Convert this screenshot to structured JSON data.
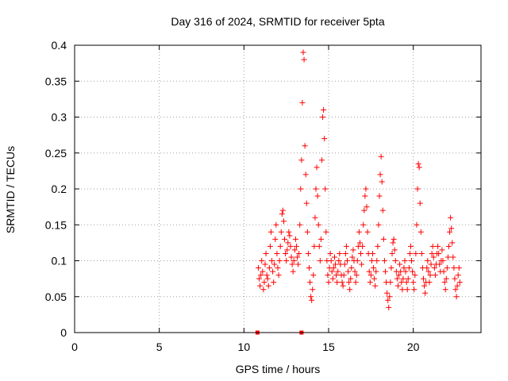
{
  "chart_data": {
    "type": "scatter",
    "title": "Day 316 of 2024, SRMTID for receiver 5pta",
    "xlabel": "GPS time / hours",
    "ylabel": "SRMTID / TECUs",
    "xlim": [
      0,
      24
    ],
    "ylim": [
      0,
      0.4
    ],
    "x_ticks": [
      "0",
      "5",
      "10",
      "15",
      "20"
    ],
    "y_ticks": [
      "0",
      "0.05",
      "0.1",
      "0.15",
      "0.2",
      "0.25",
      "0.3",
      "0.35",
      "0.4"
    ],
    "x_tick_values": [
      0,
      5,
      10,
      15,
      20
    ],
    "y_tick_values": [
      0,
      0.05,
      0.1,
      0.15,
      0.2,
      0.25,
      0.3,
      0.35,
      0.4
    ],
    "grid": true,
    "marker": "+",
    "color": "#ff0000",
    "zero_markers": [
      {
        "x": 10.8,
        "y": 0
      },
      {
        "x": 13.4,
        "y": 0
      }
    ],
    "series": [
      {
        "name": "SRMTID",
        "points": [
          [
            10.85,
            0.09
          ],
          [
            10.9,
            0.075
          ],
          [
            10.95,
            0.065
          ],
          [
            11.0,
            0.08
          ],
          [
            11.05,
            0.1
          ],
          [
            11.1,
            0.085
          ],
          [
            11.15,
            0.06
          ],
          [
            11.2,
            0.07
          ],
          [
            11.25,
            0.095
          ],
          [
            11.3,
            0.11
          ],
          [
            11.35,
            0.08
          ],
          [
            11.4,
            0.075
          ],
          [
            11.45,
            0.065
          ],
          [
            11.5,
            0.09
          ],
          [
            11.55,
            0.12
          ],
          [
            11.6,
            0.14
          ],
          [
            11.65,
            0.1
          ],
          [
            11.7,
            0.085
          ],
          [
            11.75,
            0.07
          ],
          [
            11.8,
            0.095
          ],
          [
            11.85,
            0.13
          ],
          [
            11.9,
            0.15
          ],
          [
            11.95,
            0.11
          ],
          [
            12.0,
            0.09
          ],
          [
            12.05,
            0.08
          ],
          [
            12.1,
            0.1
          ],
          [
            12.15,
            0.12
          ],
          [
            12.2,
            0.14
          ],
          [
            12.25,
            0.165
          ],
          [
            12.3,
            0.17
          ],
          [
            12.35,
            0.155
          ],
          [
            12.4,
            0.13
          ],
          [
            12.45,
            0.11
          ],
          [
            12.5,
            0.1
          ],
          [
            12.55,
            0.115
          ],
          [
            12.6,
            0.125
          ],
          [
            12.65,
            0.14
          ],
          [
            12.7,
            0.135
          ],
          [
            12.75,
            0.12
          ],
          [
            12.8,
            0.105
          ],
          [
            12.85,
            0.095
          ],
          [
            12.9,
            0.085
          ],
          [
            12.95,
            0.1
          ],
          [
            13.0,
            0.115
          ],
          [
            13.05,
            0.13
          ],
          [
            13.1,
            0.12
          ],
          [
            13.15,
            0.105
          ],
          [
            13.2,
            0.095
          ],
          [
            13.25,
            0.11
          ],
          [
            13.3,
            0.15
          ],
          [
            13.35,
            0.2
          ],
          [
            13.4,
            0.24
          ],
          [
            13.45,
            0.32
          ],
          [
            13.5,
            0.39
          ],
          [
            13.55,
            0.38
          ],
          [
            13.6,
            0.26
          ],
          [
            13.65,
            0.22
          ],
          [
            13.7,
            0.18
          ],
          [
            13.75,
            0.14
          ],
          [
            13.8,
            0.11
          ],
          [
            13.85,
            0.09
          ],
          [
            13.9,
            0.07
          ],
          [
            13.95,
            0.05
          ],
          [
            14.0,
            0.045
          ],
          [
            14.05,
            0.06
          ],
          [
            14.1,
            0.08
          ],
          [
            14.15,
            0.12
          ],
          [
            14.2,
            0.16
          ],
          [
            14.25,
            0.2
          ],
          [
            14.3,
            0.23
          ],
          [
            14.35,
            0.19
          ],
          [
            14.4,
            0.15
          ],
          [
            14.45,
            0.12
          ],
          [
            14.5,
            0.1
          ],
          [
            14.55,
            0.13
          ],
          [
            14.6,
            0.24
          ],
          [
            14.65,
            0.3
          ],
          [
            14.7,
            0.31
          ],
          [
            14.75,
            0.27
          ],
          [
            14.8,
            0.2
          ],
          [
            14.85,
            0.14
          ],
          [
            14.9,
            0.1
          ],
          [
            14.95,
            0.08
          ],
          [
            15.0,
            0.07
          ],
          [
            15.05,
            0.09
          ],
          [
            15.1,
            0.11
          ],
          [
            15.15,
            0.1
          ],
          [
            15.2,
            0.085
          ],
          [
            15.25,
            0.075
          ],
          [
            15.3,
            0.09
          ],
          [
            15.35,
            0.105
          ],
          [
            15.4,
            0.095
          ],
          [
            15.45,
            0.08
          ],
          [
            15.5,
            0.07
          ],
          [
            15.55,
            0.085
          ],
          [
            15.6,
            0.1
          ],
          [
            15.65,
            0.11
          ],
          [
            15.7,
            0.095
          ],
          [
            15.75,
            0.08
          ],
          [
            15.8,
            0.07
          ],
          [
            15.85,
            0.065
          ],
          [
            15.9,
            0.08
          ],
          [
            15.95,
            0.095
          ],
          [
            16.0,
            0.11
          ],
          [
            16.05,
            0.12
          ],
          [
            16.1,
            0.1
          ],
          [
            16.15,
            0.085
          ],
          [
            16.2,
            0.07
          ],
          [
            16.25,
            0.06
          ],
          [
            16.3,
            0.075
          ],
          [
            16.35,
            0.09
          ],
          [
            16.4,
            0.105
          ],
          [
            16.45,
            0.115
          ],
          [
            16.5,
            0.1
          ],
          [
            16.55,
            0.085
          ],
          [
            16.6,
            0.07
          ],
          [
            16.65,
            0.08
          ],
          [
            16.7,
            0.1
          ],
          [
            16.75,
            0.12
          ],
          [
            16.8,
            0.14
          ],
          [
            16.85,
            0.125
          ],
          [
            16.9,
            0.11
          ],
          [
            16.95,
            0.095
          ],
          [
            17.0,
            0.12
          ],
          [
            17.05,
            0.15
          ],
          [
            17.1,
            0.17
          ],
          [
            17.15,
            0.19
          ],
          [
            17.2,
            0.2
          ],
          [
            17.25,
            0.175
          ],
          [
            17.3,
            0.14
          ],
          [
            17.35,
            0.11
          ],
          [
            17.4,
            0.085
          ],
          [
            17.45,
            0.07
          ],
          [
            17.5,
            0.08
          ],
          [
            17.55,
            0.1
          ],
          [
            17.6,
            0.11
          ],
          [
            17.65,
            0.09
          ],
          [
            17.7,
            0.075
          ],
          [
            17.75,
            0.065
          ],
          [
            17.8,
            0.085
          ],
          [
            17.85,
            0.1
          ],
          [
            17.9,
            0.12
          ],
          [
            17.95,
            0.15
          ],
          [
            18.0,
            0.19
          ],
          [
            18.05,
            0.22
          ],
          [
            18.1,
            0.245
          ],
          [
            18.15,
            0.21
          ],
          [
            18.2,
            0.17
          ],
          [
            18.25,
            0.13
          ],
          [
            18.3,
            0.1
          ],
          [
            18.35,
            0.085
          ],
          [
            18.4,
            0.07
          ],
          [
            18.45,
            0.055
          ],
          [
            18.5,
            0.045
          ],
          [
            18.55,
            0.035
          ],
          [
            18.6,
            0.05
          ],
          [
            18.65,
            0.07
          ],
          [
            18.7,
            0.09
          ],
          [
            18.75,
            0.11
          ],
          [
            18.8,
            0.125
          ],
          [
            18.85,
            0.13
          ],
          [
            18.9,
            0.115
          ],
          [
            18.95,
            0.1
          ],
          [
            19.0,
            0.085
          ],
          [
            19.05,
            0.075
          ],
          [
            19.1,
            0.065
          ],
          [
            19.15,
            0.08
          ],
          [
            19.2,
            0.095
          ],
          [
            19.25,
            0.085
          ],
          [
            19.3,
            0.07
          ],
          [
            19.35,
            0.06
          ],
          [
            19.4,
            0.075
          ],
          [
            19.45,
            0.09
          ],
          [
            19.5,
            0.1
          ],
          [
            19.55,
            0.085
          ],
          [
            19.6,
            0.07
          ],
          [
            19.65,
            0.06
          ],
          [
            19.7,
            0.075
          ],
          [
            19.75,
            0.09
          ],
          [
            19.8,
            0.11
          ],
          [
            19.85,
            0.12
          ],
          [
            19.9,
            0.1
          ],
          [
            19.95,
            0.085
          ],
          [
            20.0,
            0.07
          ],
          [
            20.05,
            0.06
          ],
          [
            20.1,
            0.08
          ],
          [
            20.15,
            0.11
          ],
          [
            20.2,
            0.15
          ],
          [
            20.25,
            0.2
          ],
          [
            20.3,
            0.235
          ],
          [
            20.35,
            0.23
          ],
          [
            20.4,
            0.18
          ],
          [
            20.45,
            0.14
          ],
          [
            20.5,
            0.11
          ],
          [
            20.55,
            0.09
          ],
          [
            20.6,
            0.075
          ],
          [
            20.65,
            0.065
          ],
          [
            20.7,
            0.055
          ],
          [
            20.75,
            0.07
          ],
          [
            20.8,
            0.09
          ],
          [
            20.85,
            0.1
          ],
          [
            20.9,
            0.085
          ],
          [
            20.95,
            0.07
          ],
          [
            21.0,
            0.08
          ],
          [
            21.05,
            0.095
          ],
          [
            21.1,
            0.11
          ],
          [
            21.15,
            0.12
          ],
          [
            21.2,
            0.105
          ],
          [
            21.25,
            0.09
          ],
          [
            21.3,
            0.08
          ],
          [
            21.35,
            0.095
          ],
          [
            21.4,
            0.11
          ],
          [
            21.45,
            0.12
          ],
          [
            21.5,
            0.11
          ],
          [
            21.55,
            0.095
          ],
          [
            21.6,
            0.085
          ],
          [
            21.65,
            0.1
          ],
          [
            21.7,
            0.115
          ],
          [
            21.75,
            0.1
          ],
          [
            21.8,
            0.085
          ],
          [
            21.85,
            0.07
          ],
          [
            21.9,
            0.06
          ],
          [
            21.95,
            0.075
          ],
          [
            22.0,
            0.09
          ],
          [
            22.05,
            0.105
          ],
          [
            22.1,
            0.12
          ],
          [
            22.15,
            0.14
          ],
          [
            22.2,
            0.16
          ],
          [
            22.25,
            0.145
          ],
          [
            22.3,
            0.125
          ],
          [
            22.35,
            0.105
          ],
          [
            22.4,
            0.09
          ],
          [
            22.45,
            0.075
          ],
          [
            22.5,
            0.06
          ],
          [
            22.55,
            0.05
          ],
          [
            22.6,
            0.065
          ],
          [
            22.65,
            0.08
          ],
          [
            22.7,
            0.09
          ],
          [
            22.75,
            0.07
          ]
        ]
      }
    ]
  }
}
